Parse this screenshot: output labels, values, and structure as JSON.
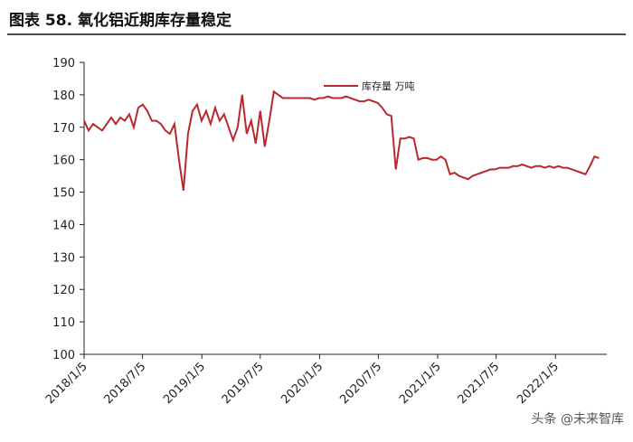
{
  "chart_data": {
    "type": "line",
    "title": "图表 58. 氧化铝近期库存量稳定",
    "x": [
      "2018/1/5",
      "2018/1/19",
      "2018/2/2",
      "2018/2/16",
      "2018/3/2",
      "2018/3/16",
      "2018/3/30",
      "2018/4/13",
      "2018/4/27",
      "2018/5/11",
      "2018/5/25",
      "2018/6/8",
      "2018/6/22",
      "2018/7/6",
      "2018/7/20",
      "2018/8/3",
      "2018/8/17",
      "2018/8/31",
      "2018/9/14",
      "2018/9/28",
      "2018/10/12",
      "2018/10/26",
      "2018/11/9",
      "2018/11/23",
      "2018/12/7",
      "2018/12/21",
      "2019/1/4",
      "2019/1/18",
      "2019/2/1",
      "2019/2/15",
      "2019/3/1",
      "2019/3/15",
      "2019/3/29",
      "2019/4/12",
      "2019/4/26",
      "2019/5/10",
      "2019/5/24",
      "2019/6/7",
      "2019/6/21",
      "2019/7/5",
      "2019/7/19",
      "2019/8/2",
      "2019/8/16",
      "2019/8/30",
      "2019/9/13",
      "2019/9/27",
      "2019/10/11",
      "2019/10/25",
      "2019/11/8",
      "2019/11/22",
      "2019/12/6",
      "2019/12/20",
      "2020/1/3",
      "2020/1/17",
      "2020/1/31",
      "2020/2/14",
      "2020/2/28",
      "2020/3/13",
      "2020/3/27",
      "2020/4/10",
      "2020/4/24",
      "2020/5/8",
      "2020/5/22",
      "2020/6/5",
      "2020/6/19",
      "2020/7/3",
      "2020/7/17",
      "2020/7/31",
      "2020/8/14",
      "2020/8/28",
      "2020/9/11",
      "2020/9/25",
      "2020/10/9",
      "2020/10/23",
      "2020/11/6",
      "2020/11/20",
      "2020/12/4",
      "2020/12/18",
      "2021/1/1",
      "2021/1/15",
      "2021/1/29",
      "2021/2/12",
      "2021/2/26",
      "2021/3/12",
      "2021/3/26",
      "2021/4/9",
      "2021/4/23",
      "2021/5/7",
      "2021/5/21",
      "2021/6/4",
      "2021/6/18",
      "2021/7/2",
      "2021/7/16",
      "2021/7/30",
      "2021/8/13",
      "2021/8/27",
      "2021/9/10",
      "2021/9/24",
      "2021/10/8",
      "2021/10/22",
      "2021/11/5",
      "2021/11/19",
      "2021/12/3",
      "2021/12/17",
      "2021/12/31",
      "2022/1/14",
      "2022/1/28",
      "2022/2/11",
      "2022/2/25",
      "2022/3/11",
      "2022/3/25",
      "2022/4/8",
      "2022/4/22",
      "2022/5/6",
      "2022/5/20"
    ],
    "series": [
      {
        "name": "库存量 万吨",
        "color": "#b8292f",
        "values": [
          172,
          169,
          171,
          170,
          169,
          171,
          173,
          171,
          173,
          172,
          174,
          170,
          176,
          177,
          175,
          172,
          172,
          171,
          169,
          168,
          171,
          160,
          150.5,
          168,
          175,
          177,
          172,
          175,
          171,
          176,
          172,
          174,
          170,
          166,
          170,
          180,
          168,
          172,
          165,
          175,
          164,
          172,
          181,
          180,
          179,
          179,
          179,
          179,
          179,
          179,
          179,
          178.5,
          179,
          179,
          179.5,
          179,
          179,
          179,
          179.5,
          179,
          178.5,
          178,
          178,
          178.5,
          178,
          177.5,
          176,
          174,
          173.5,
          157,
          166.5,
          166.5,
          167,
          166.5,
          160,
          160.5,
          160.5,
          160,
          160,
          161,
          160,
          155.5,
          156,
          155,
          154.5,
          154,
          155,
          155.5,
          156,
          156.5,
          157,
          157,
          157.5,
          157.5,
          157.5,
          158,
          158,
          158.5,
          158,
          157.5,
          158,
          158,
          157.5,
          158,
          157.5,
          158,
          157.5,
          157.5,
          157,
          156.5,
          156,
          155.5,
          158,
          161,
          160.5
        ]
      }
    ],
    "xlim": [
      "2018/1/5",
      "2022/6/13"
    ],
    "xticks": [
      "2018/1/5",
      "2018/7/5",
      "2019/1/5",
      "2019/7/5",
      "2020/1/5",
      "2020/7/5",
      "2021/1/5",
      "2021/7/5",
      "2022/1/5"
    ],
    "ylim": [
      100,
      190
    ],
    "yticks": [
      100,
      110,
      120,
      130,
      140,
      150,
      160,
      170,
      180,
      190
    ],
    "watermark": "头条 @未来智库"
  }
}
